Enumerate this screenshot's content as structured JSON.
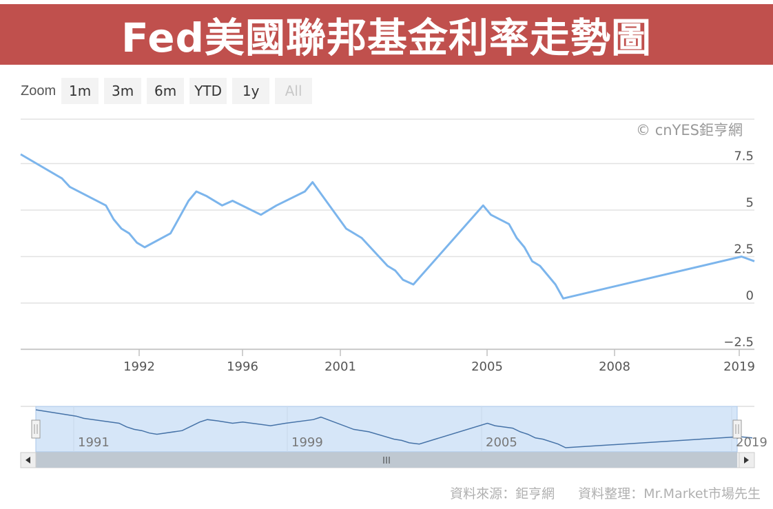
{
  "banner": {
    "title": "Fed美國聯邦基金利率走勢圖"
  },
  "zoom": {
    "label": "Zoom",
    "buttons": [
      {
        "label": "1m",
        "enabled": true
      },
      {
        "label": "3m",
        "enabled": true
      },
      {
        "label": "6m",
        "enabled": true
      },
      {
        "label": "YTD",
        "enabled": true
      },
      {
        "label": "1y",
        "enabled": true
      },
      {
        "label": "All",
        "enabled": false
      }
    ]
  },
  "credit": "© cnYES鉅亨網",
  "footer": {
    "source": "資料來源：鉅亨網",
    "compiled": "資料整理：Mr.Market市場先生"
  },
  "colors": {
    "banner": "#c0504d",
    "line": "#7cb5ec",
    "navigator_fill": "#d6e6f8"
  },
  "chart_data": {
    "type": "line",
    "title": "Fed美國聯邦基金利率走勢圖",
    "xlabel": "",
    "ylabel": "",
    "x_ticks": [
      "1992",
      "1996",
      "2001",
      "2005",
      "2008",
      "2019"
    ],
    "y_ticks": [
      "7.5",
      "5",
      "2.5",
      "0",
      "-2.5"
    ],
    "ylim": [
      -2.5,
      8.5
    ],
    "grid": true,
    "series": [
      {
        "values": [
          [
            1988.0,
            8.0
          ],
          [
            1989.6,
            6.7
          ],
          [
            1989.9,
            6.25
          ],
          [
            1991.3,
            5.25
          ],
          [
            1991.6,
            4.5
          ],
          [
            1991.9,
            4.0
          ],
          [
            1992.2,
            3.75
          ],
          [
            1992.5,
            3.25
          ],
          [
            1992.8,
            3.0
          ],
          [
            1993.8,
            3.75
          ],
          [
            1994.2,
            4.75
          ],
          [
            1994.5,
            5.5
          ],
          [
            1994.8,
            6.0
          ],
          [
            1995.2,
            5.75
          ],
          [
            1995.8,
            5.25
          ],
          [
            1996.2,
            5.5
          ],
          [
            1997.3,
            4.75
          ],
          [
            1997.9,
            5.25
          ],
          [
            1999.0,
            6.0
          ],
          [
            1999.3,
            6.5
          ],
          [
            2000.6,
            4.0
          ],
          [
            2001.2,
            3.5
          ],
          [
            2002.2,
            2.0
          ],
          [
            2002.5,
            1.75
          ],
          [
            2002.8,
            1.25
          ],
          [
            2003.2,
            1.0
          ],
          [
            2005.9,
            5.25
          ],
          [
            2006.2,
            4.75
          ],
          [
            2006.9,
            4.25
          ],
          [
            2007.2,
            3.5
          ],
          [
            2007.5,
            3.0
          ],
          [
            2007.8,
            2.25
          ],
          [
            2008.1,
            2.0
          ],
          [
            2008.7,
            1.0
          ],
          [
            2009.0,
            0.25
          ],
          [
            2015.9,
            2.5
          ],
          [
            2016.4,
            2.25
          ]
        ]
      }
    ],
    "navigator": {
      "x_ticks": [
        "1991",
        "1999",
        "2005",
        "2019"
      ]
    }
  }
}
